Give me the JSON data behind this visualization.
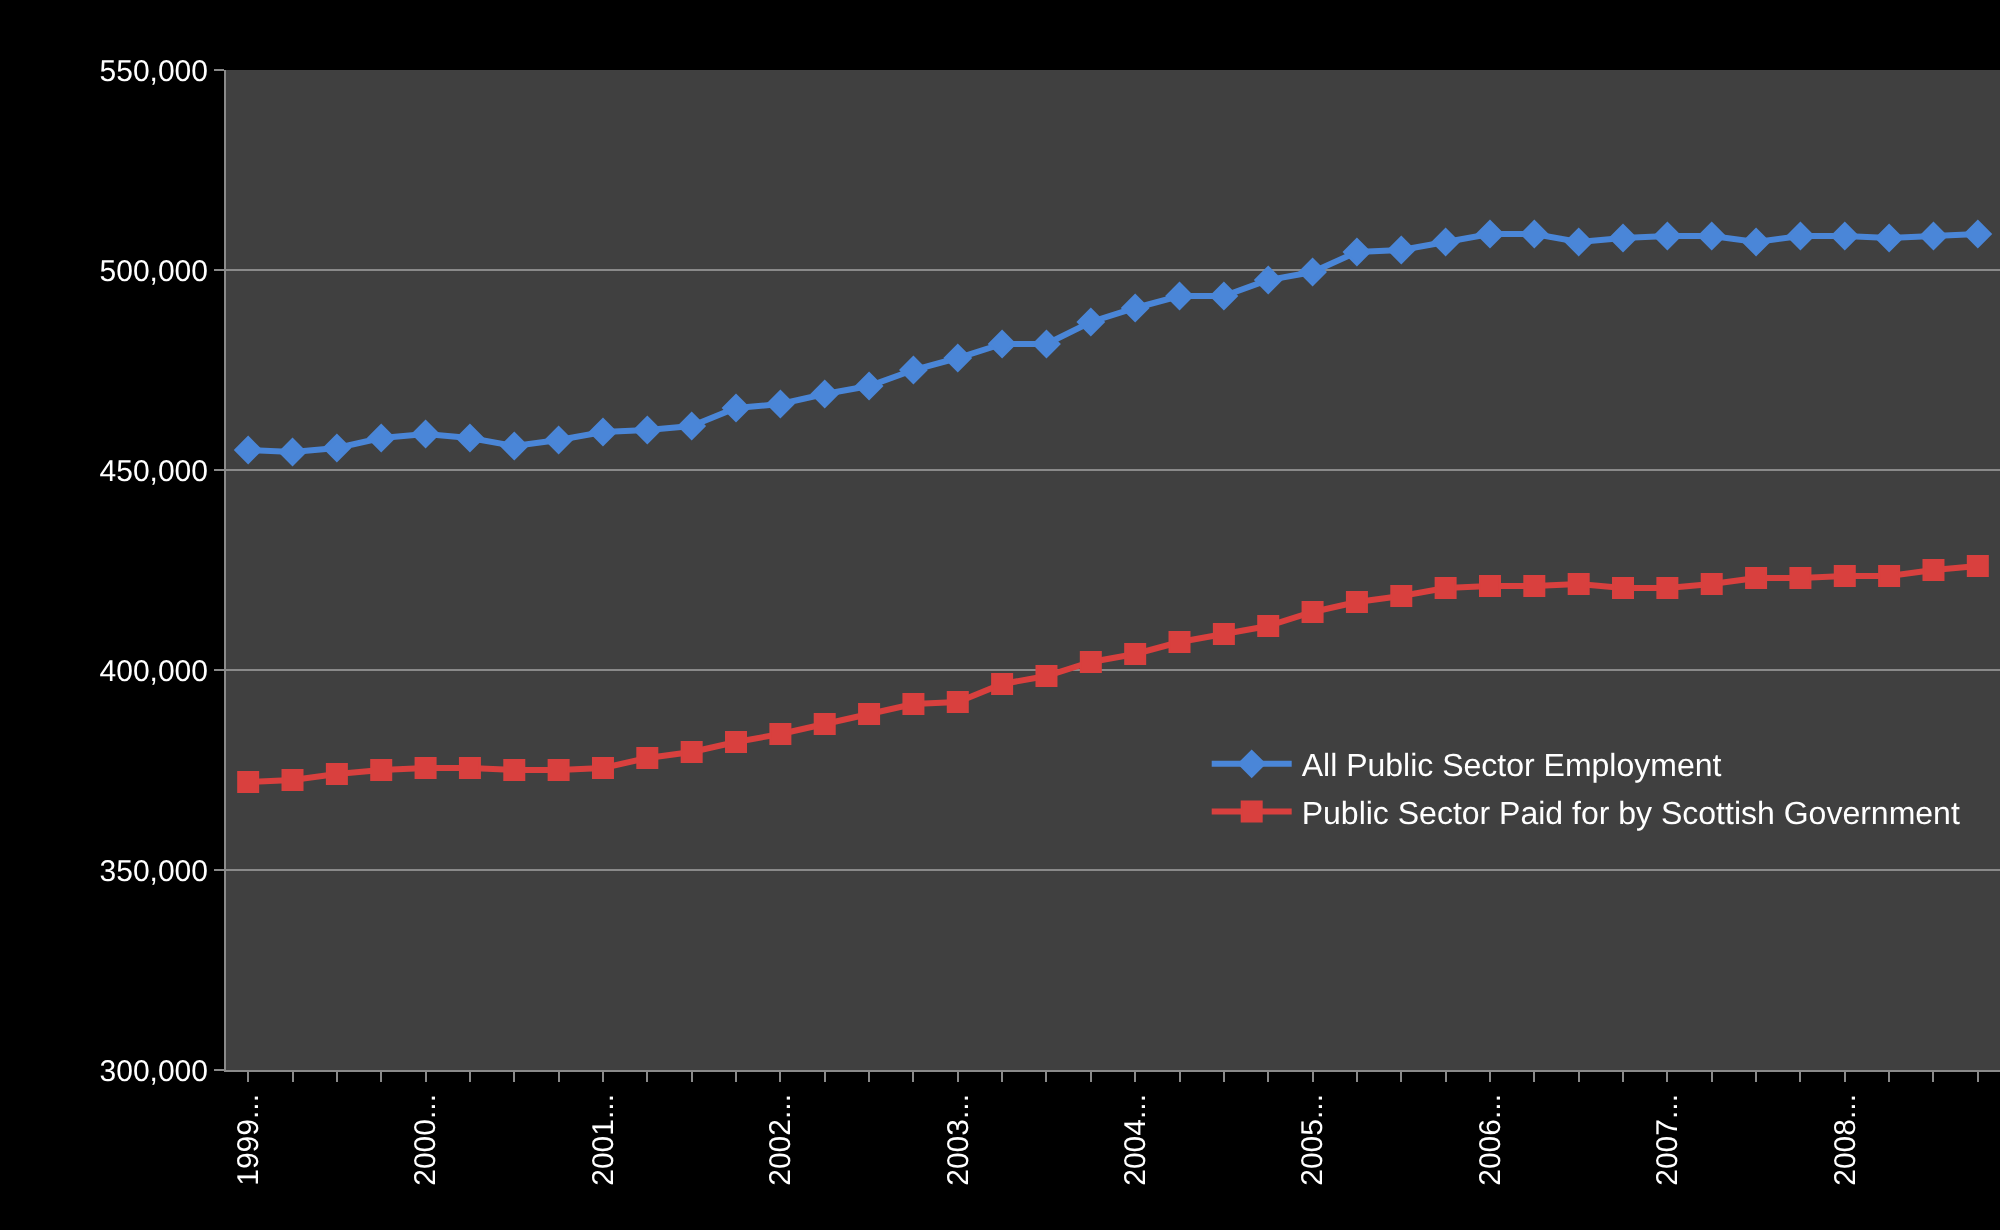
{
  "chart_data": {
    "type": "line",
    "categories": [
      "1999...",
      null,
      null,
      null,
      "2000...",
      null,
      null,
      null,
      "2001...",
      null,
      null,
      null,
      "2002...",
      null,
      null,
      null,
      "2003...",
      null,
      null,
      null,
      "2004...",
      null,
      null,
      null,
      "2005...",
      null,
      null,
      null,
      "2006...",
      null,
      null,
      null,
      "2007...",
      null,
      null,
      null,
      "2008...",
      null,
      null,
      null
    ],
    "series": [
      {
        "name": "All Public Sector Employment",
        "color": "#4a86d8",
        "marker": "diamond",
        "values": [
          455000,
          454500,
          455500,
          458000,
          459000,
          458000,
          456000,
          457500,
          459500,
          460000,
          461000,
          465500,
          466500,
          469000,
          471000,
          475000,
          478000,
          481500,
          481500,
          487000,
          490500,
          493500,
          493500,
          497500,
          499500,
          504500,
          505000,
          507000,
          509000,
          509000,
          507000,
          508000,
          508500,
          508500,
          507000,
          508500,
          508500,
          508000,
          508500,
          509000
        ]
      },
      {
        "name": "Public Sector Paid for by Scottish Government",
        "color": "#d9403e",
        "marker": "square",
        "values": [
          372000,
          372500,
          374000,
          375000,
          375500,
          375500,
          375000,
          375000,
          375500,
          378000,
          379500,
          382000,
          384000,
          386500,
          389000,
          391500,
          392000,
          396500,
          398500,
          402000,
          404000,
          407000,
          409000,
          411000,
          414500,
          417000,
          418500,
          420500,
          421000,
          421000,
          421500,
          420500,
          420500,
          421500,
          423000,
          423000,
          423500,
          423500,
          425000,
          426000
        ]
      }
    ],
    "ylim": [
      300000,
      550000
    ],
    "yticks": [
      {
        "value": 300000,
        "label": "300,000"
      },
      {
        "value": 350000,
        "label": "350,000"
      },
      {
        "value": 400000,
        "label": "400,000"
      },
      {
        "value": 450000,
        "label": "450,000"
      },
      {
        "value": 500000,
        "label": "500,000"
      },
      {
        "value": 550000,
        "label": "550,000"
      }
    ],
    "grid": "y",
    "legend": "right",
    "line_style": "solid"
  }
}
